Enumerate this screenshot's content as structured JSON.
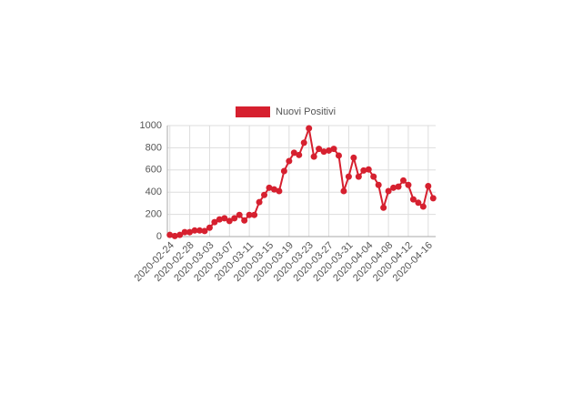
{
  "chart_data": {
    "type": "line",
    "categories": [
      "2020-02-24",
      null,
      null,
      null,
      "2020-02-28",
      null,
      null,
      null,
      "2020-03-03",
      null,
      null,
      null,
      "2020-03-07",
      null,
      null,
      null,
      "2020-03-11",
      null,
      null,
      null,
      "2020-03-15",
      null,
      null,
      null,
      "2020-03-19",
      null,
      null,
      null,
      "2020-03-23",
      null,
      null,
      null,
      "2020-03-27",
      null,
      null,
      null,
      "2020-03-31",
      null,
      null,
      null,
      "2020-04-04",
      null,
      null,
      null,
      "2020-04-08",
      null,
      null,
      null,
      "2020-04-12",
      null,
      null,
      null,
      "2020-04-16",
      null
    ],
    "series": [
      {
        "name": "Nuovi Positivi",
        "color": "#d6202f",
        "values": [
          15,
          5,
          15,
          40,
          40,
          55,
          55,
          50,
          80,
          130,
          155,
          165,
          140,
          165,
          195,
          145,
          195,
          195,
          310,
          375,
          440,
          425,
          410,
          590,
          680,
          755,
          735,
          845,
          975,
          720,
          790,
          765,
          775,
          790,
          730,
          410,
          540,
          710,
          540,
          595,
          605,
          540,
          465,
          260,
          410,
          440,
          450,
          505,
          465,
          335,
          305,
          270,
          455,
          345
        ]
      }
    ],
    "ylim": [
      0,
      1000
    ],
    "yticks": [
      0,
      200,
      400,
      600,
      800,
      1000
    ],
    "grid": true
  }
}
